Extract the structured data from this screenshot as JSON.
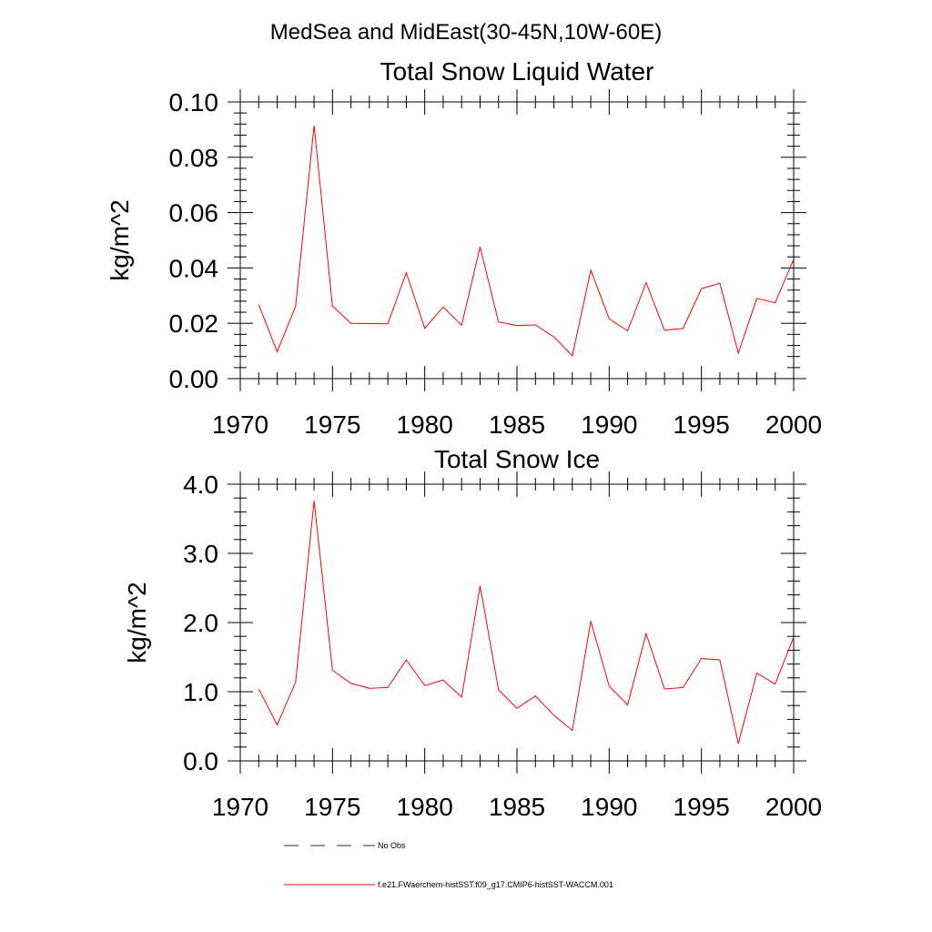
{
  "figure": {
    "main_title": "MedSea and MidEast(30-45N,10W-60E)",
    "colors": {
      "model": "#ff0000",
      "obs": "#2a2a55",
      "axis": "#000000"
    }
  },
  "legend": [
    {
      "label": "No Obs",
      "style": "dashed"
    },
    {
      "label": "f.e21.FWaerchem-histSST.f09_g17.CMIP6-histSST-WACCM.001",
      "style": "solid"
    }
  ],
  "chart_data": [
    {
      "type": "line",
      "title": "Total Snow Liquid Water",
      "xlabel": "",
      "ylabel": "kg/m^2",
      "xlim": [
        1970,
        2000
      ],
      "ylim": [
        0,
        0.1
      ],
      "xticks": [
        1970,
        1975,
        1980,
        1985,
        1990,
        1995,
        2000
      ],
      "xtick_labels": [
        "1970",
        "1975",
        "1980",
        "1985",
        "1990",
        "1995",
        "2000"
      ],
      "yticks": [
        0,
        0.02,
        0.04,
        0.06,
        0.08,
        0.1
      ],
      "ytick_labels": [
        "0.00",
        "0.02",
        "0.04",
        "0.06",
        "0.08",
        "0.10"
      ],
      "x": [
        1971,
        1972,
        1973,
        1974,
        1975,
        1976,
        1977,
        1978,
        1979,
        1980,
        1981,
        1982,
        1983,
        1984,
        1985,
        1986,
        1987,
        1988,
        1989,
        1990,
        1991,
        1992,
        1993,
        1994,
        1995,
        1996,
        1997,
        1998,
        1999,
        2000
      ],
      "series": [
        {
          "values": [
            0.0267,
            0.0097,
            0.0262,
            0.0914,
            0.0262,
            0.02,
            0.0199,
            0.0198,
            0.0383,
            0.0182,
            0.0259,
            0.0193,
            0.0476,
            0.0205,
            0.0192,
            0.0194,
            0.0151,
            0.0083,
            0.0392,
            0.0216,
            0.0173,
            0.0347,
            0.0175,
            0.0181,
            0.0325,
            0.0345,
            0.0092,
            0.029,
            0.0274,
            0.0432
          ]
        }
      ]
    },
    {
      "type": "line",
      "title": "Total Snow Ice",
      "xlabel": "",
      "ylabel": "kg/m^2",
      "xlim": [
        1970,
        2000
      ],
      "ylim": [
        0,
        4
      ],
      "xticks": [
        1970,
        1975,
        1980,
        1985,
        1990,
        1995,
        2000
      ],
      "xtick_labels": [
        "1970",
        "1975",
        "1980",
        "1985",
        "1990",
        "1995",
        "2000"
      ],
      "yticks": [
        0,
        1,
        2,
        3,
        4
      ],
      "ytick_labels": [
        "0.0",
        "1.0",
        "2.0",
        "3.0",
        "4.0"
      ],
      "x": [
        1971,
        1972,
        1973,
        1974,
        1975,
        1976,
        1977,
        1978,
        1979,
        1980,
        1981,
        1982,
        1983,
        1984,
        1985,
        1986,
        1987,
        1988,
        1989,
        1990,
        1991,
        1992,
        1993,
        1994,
        1995,
        1996,
        1997,
        1998,
        1999,
        2000
      ],
      "series": [
        {
          "values": [
            1.04,
            0.52,
            1.14,
            3.76,
            1.31,
            1.12,
            1.05,
            1.06,
            1.46,
            1.09,
            1.17,
            0.92,
            2.53,
            1.03,
            0.76,
            0.94,
            0.66,
            0.44,
            2.02,
            1.08,
            0.81,
            1.84,
            1.04,
            1.06,
            1.48,
            1.46,
            0.25,
            1.27,
            1.11,
            1.79
          ]
        }
      ]
    }
  ]
}
